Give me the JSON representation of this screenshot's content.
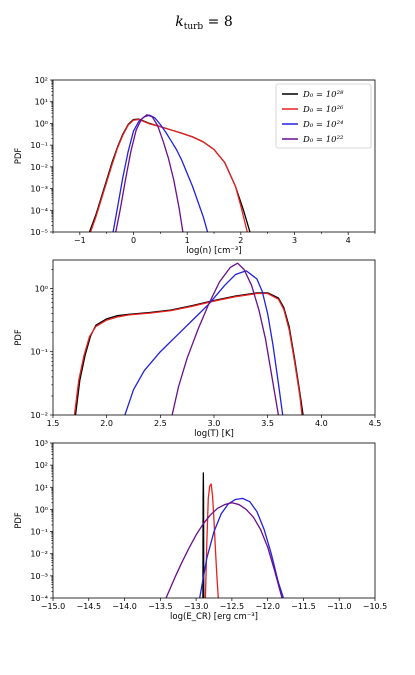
{
  "title": "k_turb = 8",
  "colors": {
    "D28": "#000000",
    "D26": "#e8211e",
    "D24": "#2222dd",
    "D22": "#6a0f8e"
  },
  "chart_data": [
    {
      "type": "line",
      "xlabel": "log(n) [cm⁻³]",
      "ylabel": "PDF",
      "yscale": "log",
      "xlim": [
        -1.5,
        4.5
      ],
      "ylim": [
        -5,
        2
      ],
      "xticks": [
        -1,
        0,
        1,
        2,
        3,
        4
      ],
      "xtick_labels": [
        "−1",
        "0",
        "1",
        "2",
        "3",
        "4"
      ],
      "yticks": [
        -5,
        -4,
        -3,
        -2,
        -1,
        0,
        1,
        2
      ],
      "ytick_labels": [
        "10⁻⁵",
        "10⁻⁴",
        "10⁻³",
        "10⁻²",
        "10⁻¹",
        "10⁰",
        "10¹",
        "10²"
      ],
      "legend": {
        "placement": "top-right",
        "entries": [
          {
            "label": "D₀ = 10²⁸",
            "color": "#000000"
          },
          {
            "label": "D₀ = 10²⁶",
            "color": "#e8211e"
          },
          {
            "label": "D₀ = 10²⁴",
            "color": "#2222dd"
          },
          {
            "label": "D₀ = 10²²",
            "color": "#6a0f8e"
          }
        ]
      },
      "series": [
        {
          "name": "D₀ = 10²⁸",
          "color": "#000000",
          "x": [
            -0.82,
            -0.7,
            -0.6,
            -0.5,
            -0.4,
            -0.3,
            -0.2,
            -0.1,
            0.0,
            0.1,
            0.2,
            0.3,
            0.5,
            0.7,
            0.9,
            1.1,
            1.3,
            1.5,
            1.7,
            1.9,
            2.05,
            2.17
          ],
          "y": [
            -5,
            -4.2,
            -3.4,
            -2.6,
            -1.8,
            -1.1,
            -0.5,
            -0.05,
            0.18,
            0.2,
            0.1,
            0.0,
            -0.15,
            -0.3,
            -0.45,
            -0.62,
            -0.85,
            -1.2,
            -1.8,
            -2.9,
            -4.0,
            -5
          ]
        },
        {
          "name": "D₀ = 10²⁶",
          "color": "#e8211e",
          "x": [
            -0.8,
            -0.7,
            -0.6,
            -0.5,
            -0.4,
            -0.3,
            -0.2,
            -0.1,
            0.0,
            0.1,
            0.2,
            0.3,
            0.5,
            0.7,
            0.9,
            1.1,
            1.3,
            1.5,
            1.7,
            1.9,
            2.0,
            2.12
          ],
          "y": [
            -5,
            -4.3,
            -3.5,
            -2.7,
            -1.9,
            -1.15,
            -0.55,
            -0.08,
            0.15,
            0.18,
            0.08,
            -0.02,
            -0.15,
            -0.3,
            -0.45,
            -0.62,
            -0.85,
            -1.2,
            -1.8,
            -2.9,
            -3.8,
            -5
          ]
        },
        {
          "name": "D₀ = 10²⁴",
          "color": "#2222dd",
          "x": [
            -0.38,
            -0.3,
            -0.2,
            -0.1,
            0.0,
            0.1,
            0.2,
            0.3,
            0.4,
            0.5,
            0.6,
            0.7,
            0.8,
            0.9,
            1.0,
            1.1,
            1.2,
            1.3,
            1.38
          ],
          "y": [
            -5,
            -3.9,
            -2.5,
            -1.3,
            -0.35,
            0.1,
            0.3,
            0.38,
            0.25,
            -0.05,
            -0.4,
            -0.8,
            -1.2,
            -1.7,
            -2.3,
            -2.9,
            -3.6,
            -4.3,
            -5
          ]
        },
        {
          "name": "D₀ = 10²²",
          "color": "#6a0f8e",
          "x": [
            -0.33,
            -0.25,
            -0.15,
            -0.05,
            0.05,
            0.15,
            0.25,
            0.35,
            0.45,
            0.55,
            0.65,
            0.75,
            0.85,
            0.92
          ],
          "y": [
            -5,
            -4.0,
            -2.6,
            -1.3,
            -0.3,
            0.2,
            0.4,
            0.3,
            -0.1,
            -0.8,
            -1.6,
            -2.6,
            -3.9,
            -5
          ]
        }
      ]
    },
    {
      "type": "line",
      "xlabel": "log(T) [K]",
      "ylabel": "PDF",
      "yscale": "log",
      "xlim": [
        1.5,
        4.5
      ],
      "ylim": [
        -2,
        0.45
      ],
      "xticks": [
        1.5,
        2.0,
        2.5,
        3.0,
        3.5,
        4.0,
        4.5
      ],
      "xtick_labels": [
        "1.5",
        "2.0",
        "2.5",
        "3.0",
        "3.5",
        "4.0",
        "4.5"
      ],
      "yticks": [
        -2,
        -1,
        0
      ],
      "ytick_labels": [
        "10⁻²",
        "10⁻¹",
        "10⁰"
      ],
      "series": [
        {
          "name": "D₀ = 10²⁸",
          "color": "#000000",
          "x": [
            1.71,
            1.75,
            1.8,
            1.85,
            1.9,
            2.0,
            2.1,
            2.2,
            2.4,
            2.6,
            2.8,
            3.0,
            3.2,
            3.4,
            3.5,
            3.6,
            3.65,
            3.7,
            3.75,
            3.8,
            3.83
          ],
          "y": [
            -2,
            -1.45,
            -1.05,
            -0.75,
            -0.58,
            -0.48,
            -0.43,
            -0.41,
            -0.38,
            -0.34,
            -0.27,
            -0.19,
            -0.12,
            -0.07,
            -0.07,
            -0.15,
            -0.3,
            -0.6,
            -1.1,
            -1.65,
            -2
          ]
        },
        {
          "name": "D₀ = 10²⁶",
          "color": "#e8211e",
          "x": [
            1.7,
            1.74,
            1.79,
            1.84,
            1.9,
            2.0,
            2.1,
            2.2,
            2.4,
            2.6,
            2.8,
            3.0,
            3.2,
            3.4,
            3.5,
            3.6,
            3.65,
            3.7,
            3.75,
            3.8,
            3.82
          ],
          "y": [
            -2,
            -1.45,
            -1.05,
            -0.76,
            -0.6,
            -0.5,
            -0.45,
            -0.42,
            -0.39,
            -0.35,
            -0.28,
            -0.2,
            -0.13,
            -0.08,
            -0.08,
            -0.17,
            -0.33,
            -0.65,
            -1.15,
            -1.7,
            -2
          ]
        },
        {
          "name": "D₀ = 10²⁴",
          "color": "#2222dd",
          "x": [
            2.17,
            2.25,
            2.35,
            2.5,
            2.65,
            2.8,
            2.95,
            3.1,
            3.2,
            3.3,
            3.4,
            3.45,
            3.5,
            3.55,
            3.6,
            3.64
          ],
          "y": [
            -2,
            -1.6,
            -1.3,
            -1.0,
            -0.75,
            -0.5,
            -0.25,
            0.05,
            0.22,
            0.28,
            0.15,
            -0.05,
            -0.4,
            -0.9,
            -1.5,
            -2
          ]
        },
        {
          "name": "D₀ = 10²²",
          "color": "#6a0f8e",
          "x": [
            2.61,
            2.67,
            2.75,
            2.85,
            2.95,
            3.05,
            3.15,
            3.22,
            3.28,
            3.35,
            3.42,
            3.48,
            3.52,
            3.57,
            3.6
          ],
          "y": [
            -2,
            -1.55,
            -1.1,
            -0.65,
            -0.25,
            0.1,
            0.33,
            0.4,
            0.3,
            0.05,
            -0.35,
            -0.8,
            -1.2,
            -1.7,
            -2
          ]
        }
      ]
    },
    {
      "type": "line",
      "xlabel": "log(E_CR) [erg cm⁻³]",
      "ylabel": "PDF",
      "yscale": "log",
      "xlim": [
        -15.0,
        -10.5
      ],
      "ylim": [
        -4,
        3
      ],
      "xticks": [
        -15.0,
        -14.5,
        -14.0,
        -13.5,
        -13.0,
        -12.5,
        -12.0,
        -11.5,
        -11.0,
        -10.5
      ],
      "xtick_labels": [
        "−15.0",
        "−14.5",
        "−14.0",
        "−13.5",
        "−13.0",
        "−12.5",
        "−12.0",
        "−11.5",
        "−11.0",
        "−10.5"
      ],
      "yticks": [
        -4,
        -3,
        -2,
        -1,
        0,
        1,
        2,
        3
      ],
      "ytick_labels": [
        "10⁻⁴",
        "10⁻³",
        "10⁻²",
        "10⁻¹",
        "10⁰",
        "10¹",
        "10²",
        "10³"
      ],
      "series": [
        {
          "name": "D₀ = 10²⁸",
          "color": "#000000",
          "x": [
            -12.905,
            -12.902,
            -12.899,
            -12.896,
            -12.893
          ],
          "y": [
            -4,
            0.5,
            1.65,
            0.5,
            -4
          ]
        },
        {
          "name": "D₀ = 10²⁶",
          "color": "#e8211e",
          "x": [
            -12.87,
            -12.85,
            -12.83,
            -12.81,
            -12.79,
            -12.77,
            -12.75,
            -12.73,
            -12.71,
            -12.69
          ],
          "y": [
            -4,
            -1.5,
            0.5,
            1.05,
            1.15,
            0.6,
            -0.5,
            -1.8,
            -3.0,
            -4
          ]
        },
        {
          "name": "D₀ = 10²⁴",
          "color": "#2222dd",
          "x": [
            -12.95,
            -12.85,
            -12.75,
            -12.65,
            -12.55,
            -12.45,
            -12.35,
            -12.25,
            -12.15,
            -12.05,
            -11.95,
            -11.85,
            -11.78
          ],
          "y": [
            -4,
            -2.2,
            -1.0,
            -0.2,
            0.25,
            0.45,
            0.5,
            0.35,
            -0.1,
            -0.9,
            -2.0,
            -3.3,
            -4
          ]
        },
        {
          "name": "D₀ = 10²²",
          "color": "#6a0f8e",
          "x": [
            -13.42,
            -13.3,
            -13.2,
            -13.1,
            -13.0,
            -12.9,
            -12.8,
            -12.7,
            -12.6,
            -12.5,
            -12.4,
            -12.3,
            -12.2,
            -12.1,
            -12.0,
            -11.9,
            -11.8
          ],
          "y": [
            -4,
            -3.1,
            -2.4,
            -1.75,
            -1.15,
            -0.65,
            -0.25,
            0.05,
            0.22,
            0.3,
            0.22,
            0.0,
            -0.35,
            -0.9,
            -1.7,
            -2.8,
            -4
          ]
        }
      ]
    }
  ]
}
